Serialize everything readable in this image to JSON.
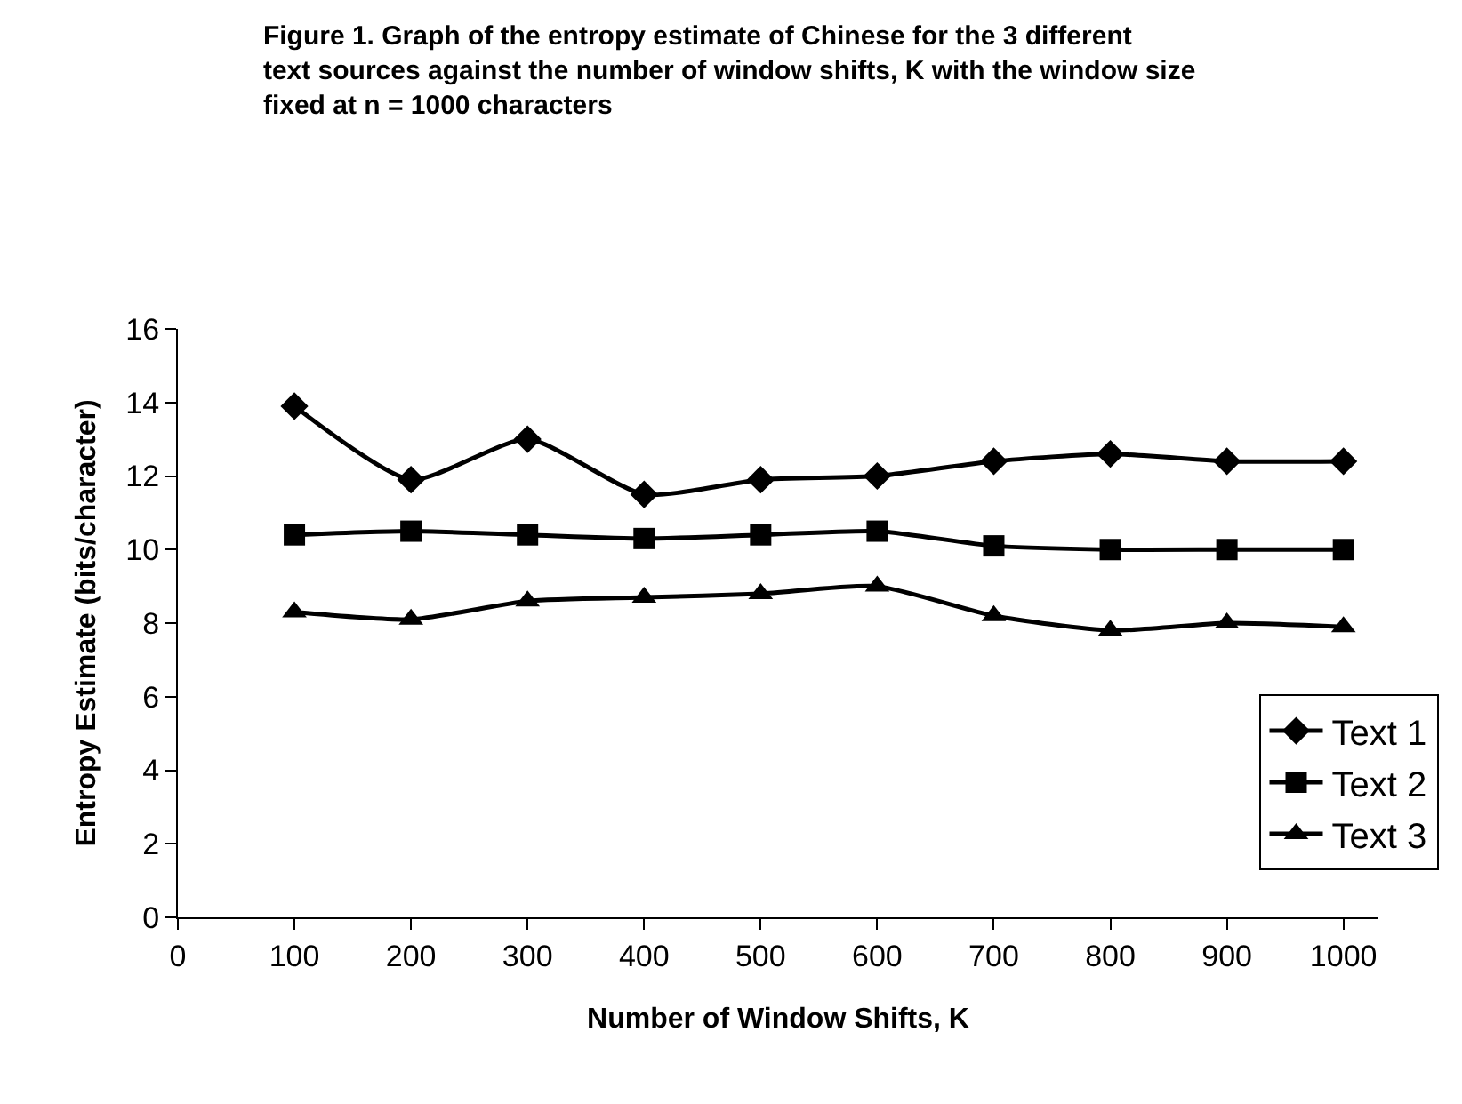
{
  "chart_data": {
    "type": "line",
    "title": "Figure 1. Graph of the entropy estimate of Chinese for the 3 different text sources against the number of window shifts, K with the window size fixed at n = 1000 characters",
    "xlabel": "Number of Window Shifts, K",
    "ylabel": "Entropy Estimate (bits/character)",
    "x": [
      100,
      200,
      300,
      400,
      500,
      600,
      700,
      800,
      900,
      1000
    ],
    "series": [
      {
        "name": "Text 1",
        "color": "#000000",
        "marker": "diamond",
        "values": [
          13.9,
          11.9,
          13.0,
          11.5,
          11.9,
          12.0,
          12.4,
          12.6,
          12.4,
          12.4
        ]
      },
      {
        "name": "Text 2",
        "color": "#000000",
        "marker": "square",
        "values": [
          10.4,
          10.5,
          10.4,
          10.3,
          10.4,
          10.5,
          10.1,
          10.0,
          10.0,
          10.0
        ]
      },
      {
        "name": "Text 3",
        "color": "#000000",
        "marker": "triangle",
        "values": [
          8.3,
          8.1,
          8.6,
          8.7,
          8.8,
          9.0,
          8.2,
          7.8,
          8.0,
          7.9
        ]
      }
    ],
    "xlim": [
      0,
      1030
    ],
    "xticks": [
      0,
      100,
      200,
      300,
      400,
      500,
      600,
      700,
      800,
      900,
      1000
    ],
    "ylim": [
      0,
      16
    ],
    "yticks": [
      0,
      2,
      4,
      6,
      8,
      10,
      12,
      14,
      16
    ],
    "grid": false,
    "legend": "bottom right",
    "line_style": "solid"
  }
}
